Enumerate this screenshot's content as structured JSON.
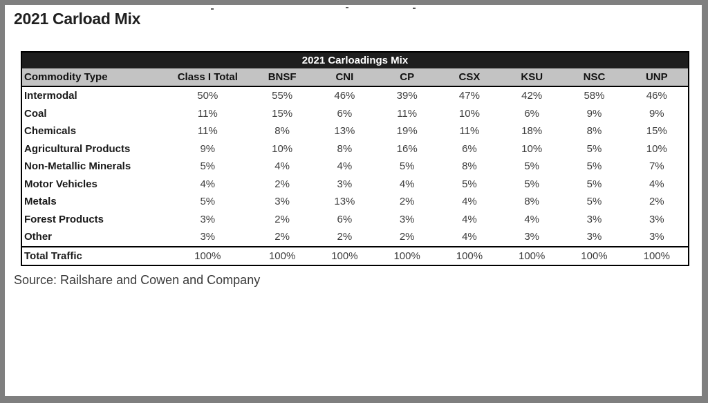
{
  "page": {
    "title": "2021 Carload Mix",
    "source": "Source: Railshare and Cowen and Company"
  },
  "table": {
    "title": "2021 Carloadings Mix",
    "columns": [
      "Commodity Type",
      "Class I Total",
      "BNSF",
      "CNI",
      "CP",
      "CSX",
      "KSU",
      "NSC",
      "UNP"
    ],
    "rows": [
      {
        "label": "Intermodal",
        "values": [
          "50%",
          "55%",
          "46%",
          "39%",
          "47%",
          "42%",
          "58%",
          "46%"
        ]
      },
      {
        "label": "Coal",
        "values": [
          "11%",
          "15%",
          "6%",
          "11%",
          "10%",
          "6%",
          "9%",
          "9%"
        ]
      },
      {
        "label": "Chemicals",
        "values": [
          "11%",
          "8%",
          "13%",
          "19%",
          "11%",
          "18%",
          "8%",
          "15%"
        ]
      },
      {
        "label": "Agricultural Products",
        "values": [
          "9%",
          "10%",
          "8%",
          "16%",
          "6%",
          "10%",
          "5%",
          "10%"
        ]
      },
      {
        "label": "Non-Metallic Minerals",
        "values": [
          "5%",
          "4%",
          "4%",
          "5%",
          "8%",
          "5%",
          "5%",
          "7%"
        ]
      },
      {
        "label": "Motor Vehicles",
        "values": [
          "4%",
          "2%",
          "3%",
          "4%",
          "5%",
          "5%",
          "5%",
          "4%"
        ]
      },
      {
        "label": "Metals",
        "values": [
          "5%",
          "3%",
          "13%",
          "2%",
          "4%",
          "8%",
          "5%",
          "2%"
        ]
      },
      {
        "label": "Forest Products",
        "values": [
          "3%",
          "2%",
          "6%",
          "3%",
          "4%",
          "4%",
          "3%",
          "3%"
        ]
      },
      {
        "label": "Other",
        "values": [
          "3%",
          "2%",
          "2%",
          "2%",
          "4%",
          "3%",
          "3%",
          "3%"
        ]
      }
    ],
    "total_row": {
      "label": "Total Traffic",
      "values": [
        "100%",
        "100%",
        "100%",
        "100%",
        "100%",
        "100%",
        "100%",
        "100%"
      ]
    }
  },
  "colors": {
    "table_title_bg": "#1e1e1e",
    "table_title_text": "#ffffff",
    "column_header_bg": "#c3c3c3",
    "page_border": "#7f7f7f",
    "table_border": "#000000"
  }
}
